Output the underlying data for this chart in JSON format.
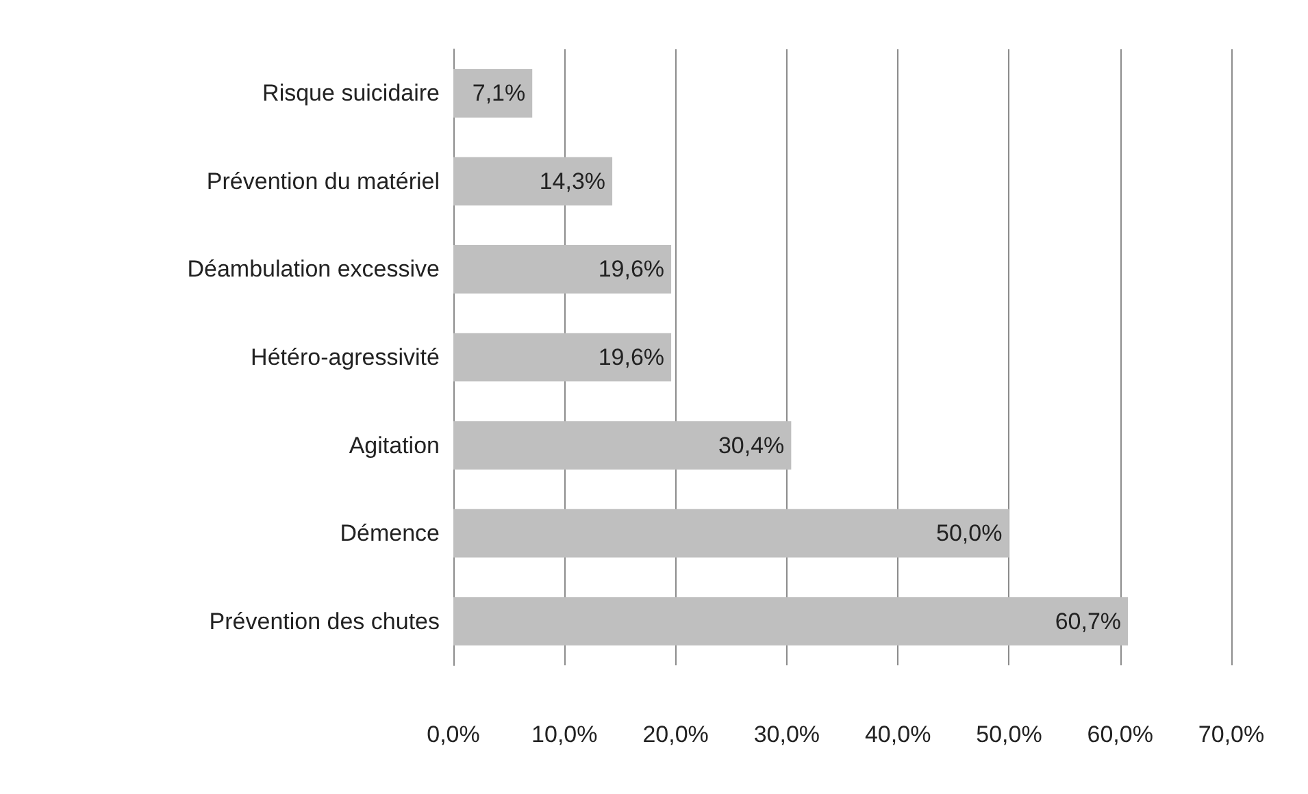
{
  "chart_data": {
    "type": "bar",
    "orientation": "horizontal",
    "categories": [
      "Risque suicidaire",
      "Prévention du matériel",
      "Déambulation excessive",
      "Hétéro-agressivité",
      "Agitation",
      "Démence",
      "Prévention des chutes"
    ],
    "values": [
      7.1,
      14.3,
      19.6,
      19.6,
      30.4,
      50.0,
      60.7
    ],
    "value_labels": [
      "7,1%",
      "14,3%",
      "19,6%",
      "19,6%",
      "30,4%",
      "50,0%",
      "60,7%"
    ],
    "color": "#bfbfbf",
    "xlim": [
      0,
      70
    ],
    "xticks": [
      {
        "value": 0,
        "label": "0,0%"
      },
      {
        "value": 10,
        "label": "10,0%"
      },
      {
        "value": 20,
        "label": "20,0%"
      },
      {
        "value": 30,
        "label": "30,0%"
      },
      {
        "value": 40,
        "label": "40,0%"
      },
      {
        "value": 50,
        "label": "50,0%"
      },
      {
        "value": 60,
        "label": "60,0%"
      },
      {
        "value": 70,
        "label": "70,0%"
      }
    ],
    "grid": "x"
  }
}
